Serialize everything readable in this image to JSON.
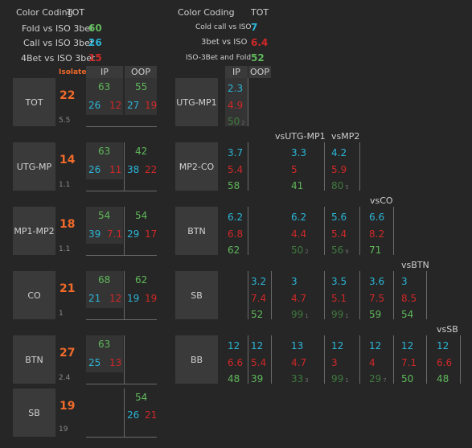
{
  "left_legend": {
    "title": "Color Coding",
    "tot": "TOT",
    "rows": [
      {
        "label": "Fold vs ISO 3bet",
        "value": "60",
        "color": "#5fb85a"
      },
      {
        "label": "Call vs ISO 3bet",
        "value": "26",
        "color": "#2bb5d6"
      },
      {
        "label": "4Bet vs ISO 3bet",
        "value": "15",
        "color": "#d12828"
      }
    ]
  },
  "right_legend": {
    "title": "Color Coding",
    "tot": "TOT",
    "rows": [
      {
        "label": "Cold call vs ISO",
        "value": "7",
        "color": "#2bb5d6"
      },
      {
        "label": "3bet vs ISO",
        "value": "6.4",
        "color": "#d12828"
      },
      {
        "label": "ISO-3Bet and Fold",
        "value": "52",
        "color": "#5fb85a"
      }
    ]
  },
  "left_table": {
    "isolate_label": "Isolate",
    "ip_label": "IP",
    "oop_label": "OOP",
    "rows": [
      {
        "pos": "TOT",
        "iso": "22",
        "hands": "5.5",
        "ip": {
          "top": "63",
          "b": "26",
          "r": "12"
        },
        "oop": {
          "top": "55",
          "b": "27",
          "r": "19"
        }
      },
      {
        "pos": "UTG-MP",
        "iso": "14",
        "hands": "1.1",
        "ip": {
          "top": "63",
          "b": "26",
          "r": "11"
        },
        "oop": {
          "top": "42",
          "b": "38",
          "r": "22"
        }
      },
      {
        "pos": "MP1-MP2",
        "iso": "18",
        "hands": "1.1",
        "ip": {
          "top": "54",
          "b": "39",
          "r": "7.1"
        },
        "oop": {
          "top": "54",
          "b": "29",
          "r": "17"
        }
      },
      {
        "pos": "CO",
        "iso": "21",
        "hands": "1",
        "ip": {
          "top": "68",
          "b": "21",
          "r": "12"
        },
        "oop": {
          "top": "62",
          "b": "19",
          "r": "19"
        }
      },
      {
        "pos": "BTN",
        "iso": "27",
        "hands": "2.4",
        "ip": {
          "top": "63",
          "b": "25",
          "r": "13"
        },
        "oop": null
      },
      {
        "pos": "SB",
        "iso": "19",
        "hands": "19",
        "ip": null,
        "oop": {
          "top": "54",
          "b": "26",
          "r": "21"
        }
      }
    ]
  },
  "right_table": {
    "ip_label": "IP",
    "oop_label": "OOP",
    "col_headers": [
      "vsUTG-MP1",
      "vsMP2",
      "vsCO",
      "vsBTN",
      "vsSB"
    ],
    "rows": {
      "utg_mp1": {
        "pos": "UTG-MP1",
        "ip": [
          "2.3",
          "4.9",
          "50",
          "2"
        ]
      },
      "mp2_co": {
        "pos": "MP2-CO",
        "ip": [
          "3.7",
          "5.4",
          "58"
        ],
        "vsutg": [
          "3.3",
          "5",
          "41"
        ],
        "vsmp2": [
          "4.2",
          "5.9",
          "80",
          "5"
        ]
      },
      "btn": {
        "pos": "BTN",
        "ip": [
          "6.2",
          "6.8",
          "62"
        ],
        "vsutg": [
          "6.2",
          "4.4",
          "50",
          "2"
        ],
        "vsmp2": [
          "5.6",
          "5.4",
          "56",
          "9"
        ],
        "vsco": [
          "6.6",
          "8.2",
          "71"
        ]
      },
      "sb": {
        "pos": "SB",
        "oop": [
          "3.2",
          "7.4",
          "52"
        ],
        "vsutg": [
          "3",
          "4.7",
          "99",
          "1"
        ],
        "vsmp2": [
          "3.5",
          "5.1",
          "99",
          "1"
        ],
        "vsco": [
          "3.6",
          "7.5",
          "59"
        ],
        "vsbtn": [
          "3",
          "8.5",
          "54"
        ]
      },
      "bb": {
        "pos": "BB",
        "ip": [
          "12",
          "6.6",
          "48"
        ],
        "oop": [
          "12",
          "5.4",
          "39"
        ],
        "vsutg": [
          "13",
          "4.7",
          "33",
          "3"
        ],
        "vsmp2": [
          "12",
          "3",
          "99",
          "1"
        ],
        "vsco": [
          "12",
          "4",
          "29",
          "7"
        ],
        "vsbtn": [
          "12",
          "7.1",
          "50"
        ],
        "vssb": [
          "12",
          "6.6",
          "48"
        ]
      }
    }
  }
}
